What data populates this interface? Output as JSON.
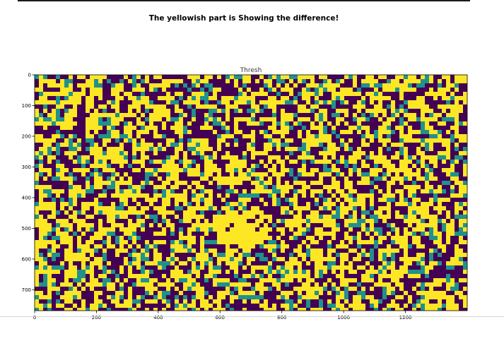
{
  "header": {
    "suptitle": "The yellowish part is Showing the difference!"
  },
  "colors": {
    "background": "#ffffff",
    "low_class": "#440154",
    "edge_class": "#21918c",
    "high_class": "#fde725"
  },
  "chart_data": {
    "type": "heatmap",
    "title": "Thresh",
    "xlabel": "",
    "ylabel": "",
    "colormap": "viridis",
    "value_range": [
      0,
      255
    ],
    "xlim": [
      0,
      1400
    ],
    "ylim": [
      768,
      0
    ],
    "x_ticks": [
      0,
      200,
      400,
      600,
      800,
      1000,
      1200
    ],
    "y_ticks": [
      0,
      100,
      200,
      300,
      400,
      500,
      600,
      700
    ],
    "x_tick_labels": [
      "0",
      "200",
      "400",
      "600",
      "800",
      "1000",
      "1200"
    ],
    "y_tick_labels": [
      "0",
      "100",
      "200",
      "300",
      "400",
      "500",
      "600",
      "700"
    ],
    "grid": false,
    "legend": "none",
    "notable_regions": [
      {
        "description": "large yellow blob",
        "x_range": [
          590,
          770
        ],
        "y_range": [
          435,
          560
        ]
      }
    ]
  }
}
